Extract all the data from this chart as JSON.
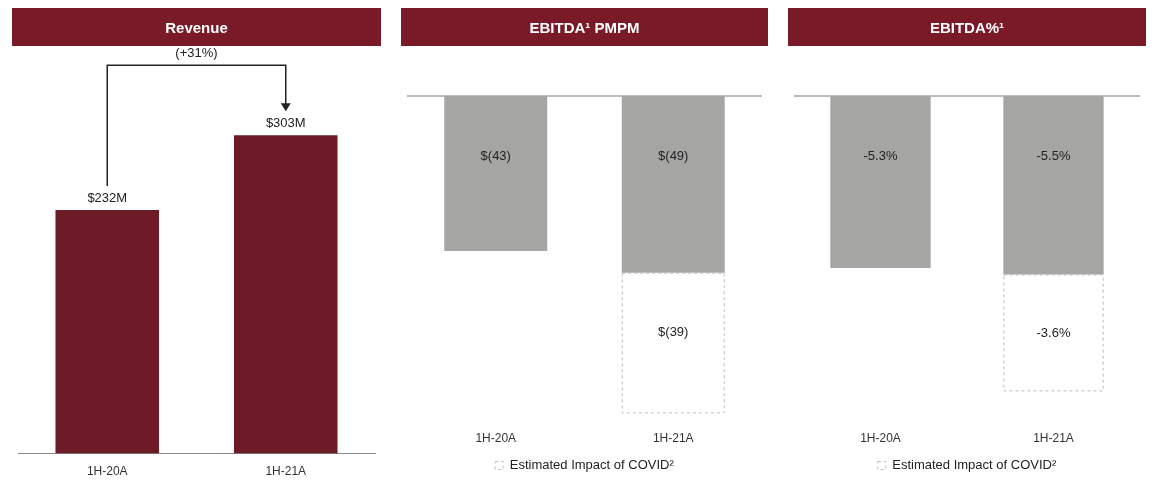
{
  "chart_data": [
    {
      "type": "bar",
      "title": "Revenue",
      "categories": [
        "1H-20A",
        "1H-21A"
      ],
      "values": [
        232,
        303
      ],
      "color": "#6d1c27",
      "value_labels": [
        "$232M",
        "$303M"
      ],
      "annotations": [
        "(+31%)"
      ]
    },
    {
      "type": "bar",
      "title": "EBITDA¹ PMPM",
      "categories": [
        "1H-20A",
        "1H-21A"
      ],
      "stacked": true,
      "legend": "bottom",
      "ref_lines": [
        {
          "axis": "y",
          "value": 0,
          "color": "#a6a6a6"
        }
      ],
      "series": [
        {
          "color": "#a5a5a3",
          "values": [
            -43,
            -49
          ],
          "value_labels": [
            "$(43)",
            "$(49)"
          ]
        },
        {
          "name": "Estimated Impact of COVID²",
          "color": "#bfbfbf",
          "line_style": "dashed",
          "values": [
            null,
            -39
          ],
          "value_labels": [
            null,
            "$(39)"
          ]
        }
      ]
    },
    {
      "type": "bar",
      "title": "EBITDA%¹",
      "categories": [
        "1H-20A",
        "1H-21A"
      ],
      "stacked": true,
      "legend": "bottom",
      "ref_lines": [
        {
          "axis": "y",
          "value": 0,
          "color": "#a6a6a6"
        }
      ],
      "series": [
        {
          "color": "#a5a5a3",
          "values": [
            -5.3,
            -5.5
          ],
          "value_labels": [
            "-5.3%",
            "-5.5%"
          ]
        },
        {
          "name": "Estimated Impact of COVID²",
          "color": "#bfbfbf",
          "line_style": "dashed",
          "values": [
            null,
            -3.6
          ],
          "value_labels": [
            null,
            "-3.6%"
          ]
        }
      ]
    }
  ]
}
